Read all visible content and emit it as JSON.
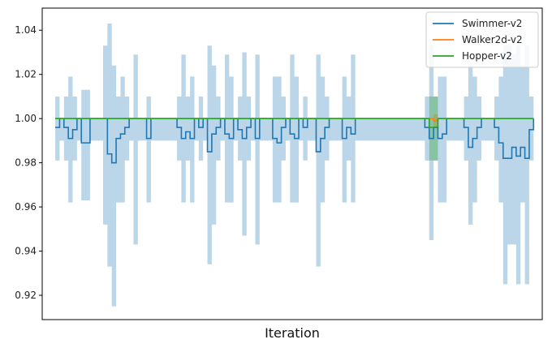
{
  "chart_data": {
    "type": "line",
    "title": "",
    "xlabel": "Iteration",
    "ylabel": "",
    "ylim": [
      0.909,
      1.05
    ],
    "xlim": [
      -3,
      112
    ],
    "yticks": [
      0.92,
      0.94,
      0.96,
      0.98,
      1.0,
      1.02,
      1.04
    ],
    "ytick_labels": [
      "0.92",
      "0.94",
      "0.96",
      "0.98",
      "1.00",
      "1.02",
      "1.04"
    ],
    "xticks_shown": false,
    "grid": false,
    "legend_position": "top-right",
    "series": [
      {
        "name": "Swimmer-v2",
        "color": "#1f77b4",
        "band_color": "#1f77b4",
        "x": [
          0,
          1,
          2,
          3,
          4,
          5,
          6,
          7,
          8,
          9,
          10,
          11,
          12,
          13,
          14,
          15,
          16,
          17,
          18,
          19,
          20,
          21,
          22,
          23,
          24,
          25,
          26,
          27,
          28,
          29,
          30,
          31,
          32,
          33,
          34,
          35,
          36,
          37,
          38,
          39,
          40,
          41,
          42,
          43,
          44,
          45,
          46,
          47,
          48,
          49,
          50,
          51,
          52,
          53,
          54,
          55,
          56,
          57,
          58,
          59,
          60,
          61,
          62,
          63,
          64,
          65,
          66,
          67,
          68,
          69,
          70,
          71,
          72,
          73,
          74,
          75,
          76,
          77,
          78,
          79,
          80,
          81,
          82,
          83,
          84,
          85,
          86,
          87,
          88,
          89,
          90,
          91,
          92,
          93,
          94,
          95,
          96,
          97,
          98,
          99,
          100,
          101,
          102,
          103,
          104,
          105,
          106,
          107,
          108,
          109,
          110
        ],
        "mean": [
          0.996,
          1.0,
          0.996,
          0.991,
          0.995,
          1.0,
          0.989,
          0.989,
          1.0,
          1.0,
          1.0,
          1.0,
          0.984,
          0.98,
          0.991,
          0.993,
          0.996,
          1.0,
          1.0,
          1.0,
          1.0,
          0.991,
          1.0,
          1.0,
          1.0,
          1.0,
          1.0,
          1.0,
          0.996,
          0.991,
          0.994,
          0.991,
          1.0,
          0.996,
          1.0,
          0.985,
          0.993,
          0.996,
          1.0,
          0.993,
          0.991,
          1.0,
          0.995,
          0.991,
          0.996,
          1.0,
          0.991,
          1.0,
          1.0,
          1.0,
          0.991,
          0.989,
          0.996,
          1.0,
          0.993,
          0.991,
          1.0,
          0.996,
          1.0,
          1.0,
          0.985,
          0.991,
          0.996,
          1.0,
          1.0,
          1.0,
          0.991,
          0.996,
          0.993,
          1.0,
          1.0,
          1.0,
          1.0,
          1.0,
          1.0,
          1.0,
          1.0,
          1.0,
          1.0,
          1.0,
          1.0,
          1.0,
          1.0,
          1.0,
          1.0,
          0.996,
          0.991,
          0.996,
          0.991,
          0.993,
          1.0,
          1.0,
          1.0,
          1.0,
          0.996,
          0.987,
          0.991,
          0.996,
          1.0,
          1.0,
          1.0,
          0.996,
          0.989,
          0.982,
          0.982,
          0.987,
          0.983,
          0.987,
          0.982,
          0.995,
          1.0
        ],
        "lower": [
          0.981,
          0.99,
          0.981,
          0.962,
          0.981,
          0.99,
          0.963,
          0.963,
          0.99,
          0.99,
          0.99,
          0.952,
          0.933,
          0.915,
          0.962,
          0.962,
          0.981,
          0.99,
          0.943,
          0.99,
          0.99,
          0.962,
          0.99,
          0.99,
          0.99,
          0.99,
          0.99,
          0.99,
          0.981,
          0.962,
          0.981,
          0.962,
          0.99,
          0.981,
          0.99,
          0.934,
          0.952,
          0.981,
          0.99,
          0.962,
          0.962,
          0.99,
          0.981,
          0.947,
          0.981,
          0.99,
          0.943,
          0.99,
          0.99,
          0.99,
          0.962,
          0.962,
          0.981,
          0.99,
          0.962,
          0.962,
          0.99,
          0.981,
          0.99,
          0.99,
          0.933,
          0.962,
          0.981,
          0.99,
          0.99,
          0.99,
          0.962,
          0.981,
          0.962,
          0.99,
          0.99,
          0.99,
          0.99,
          0.99,
          0.99,
          0.99,
          0.99,
          0.99,
          0.99,
          0.99,
          0.99,
          0.99,
          0.99,
          0.99,
          0.99,
          0.981,
          0.945,
          0.981,
          0.962,
          0.962,
          0.99,
          0.99,
          0.99,
          0.99,
          0.981,
          0.952,
          0.962,
          0.981,
          0.99,
          0.99,
          0.99,
          0.981,
          0.962,
          0.925,
          0.943,
          0.943,
          0.925,
          0.962,
          0.925,
          0.981,
          0.99
        ],
        "upper": [
          1.01,
          1.0,
          1.01,
          1.019,
          1.01,
          1.0,
          1.013,
          1.013,
          1.0,
          1.0,
          1.0,
          1.033,
          1.043,
          1.024,
          1.01,
          1.019,
          1.01,
          1.0,
          1.029,
          1.0,
          1.0,
          1.01,
          1.0,
          1.0,
          1.0,
          1.0,
          1.0,
          1.0,
          1.01,
          1.029,
          1.01,
          1.019,
          1.0,
          1.01,
          1.0,
          1.033,
          1.024,
          1.01,
          1.0,
          1.029,
          1.019,
          1.0,
          1.01,
          1.03,
          1.01,
          1.0,
          1.029,
          1.0,
          1.0,
          1.0,
          1.019,
          1.019,
          1.01,
          1.0,
          1.029,
          1.019,
          1.0,
          1.01,
          1.0,
          1.0,
          1.029,
          1.019,
          1.01,
          1.0,
          1.0,
          1.0,
          1.019,
          1.01,
          1.029,
          1.0,
          1.0,
          1.0,
          1.0,
          1.0,
          1.0,
          1.0,
          1.0,
          1.0,
          1.0,
          1.0,
          1.0,
          1.0,
          1.0,
          1.0,
          1.0,
          1.01,
          1.033,
          1.01,
          1.019,
          1.019,
          1.0,
          1.0,
          1.0,
          1.0,
          1.01,
          1.024,
          1.019,
          1.01,
          1.0,
          1.0,
          1.0,
          1.01,
          1.019,
          1.033,
          1.033,
          1.029,
          1.033,
          1.024,
          1.033,
          1.01,
          1.0
        ]
      },
      {
        "name": "Walker2d-v2",
        "color": "#ff7f0e",
        "band_color": "#ff7f0e",
        "x": [
          0,
          86,
          87,
          88,
          110
        ],
        "mean": [
          1.0,
          1.0,
          0.999,
          1.0,
          1.0
        ],
        "lower": [
          1.0,
          1.0,
          0.996,
          1.0,
          1.0
        ],
        "upper": [
          1.0,
          1.0,
          1.002,
          1.0,
          1.0
        ]
      },
      {
        "name": "Hopper-v2",
        "color": "#2ca02c",
        "band_color": "#2ca02c",
        "x": [
          0,
          85,
          86,
          87,
          88,
          110
        ],
        "mean": [
          1.0,
          1.0,
          0.996,
          0.996,
          1.0,
          1.0
        ],
        "lower": [
          1.0,
          1.0,
          0.981,
          0.981,
          1.0,
          1.0
        ],
        "upper": [
          1.0,
          1.0,
          1.01,
          1.01,
          1.0,
          1.0
        ]
      }
    ]
  }
}
